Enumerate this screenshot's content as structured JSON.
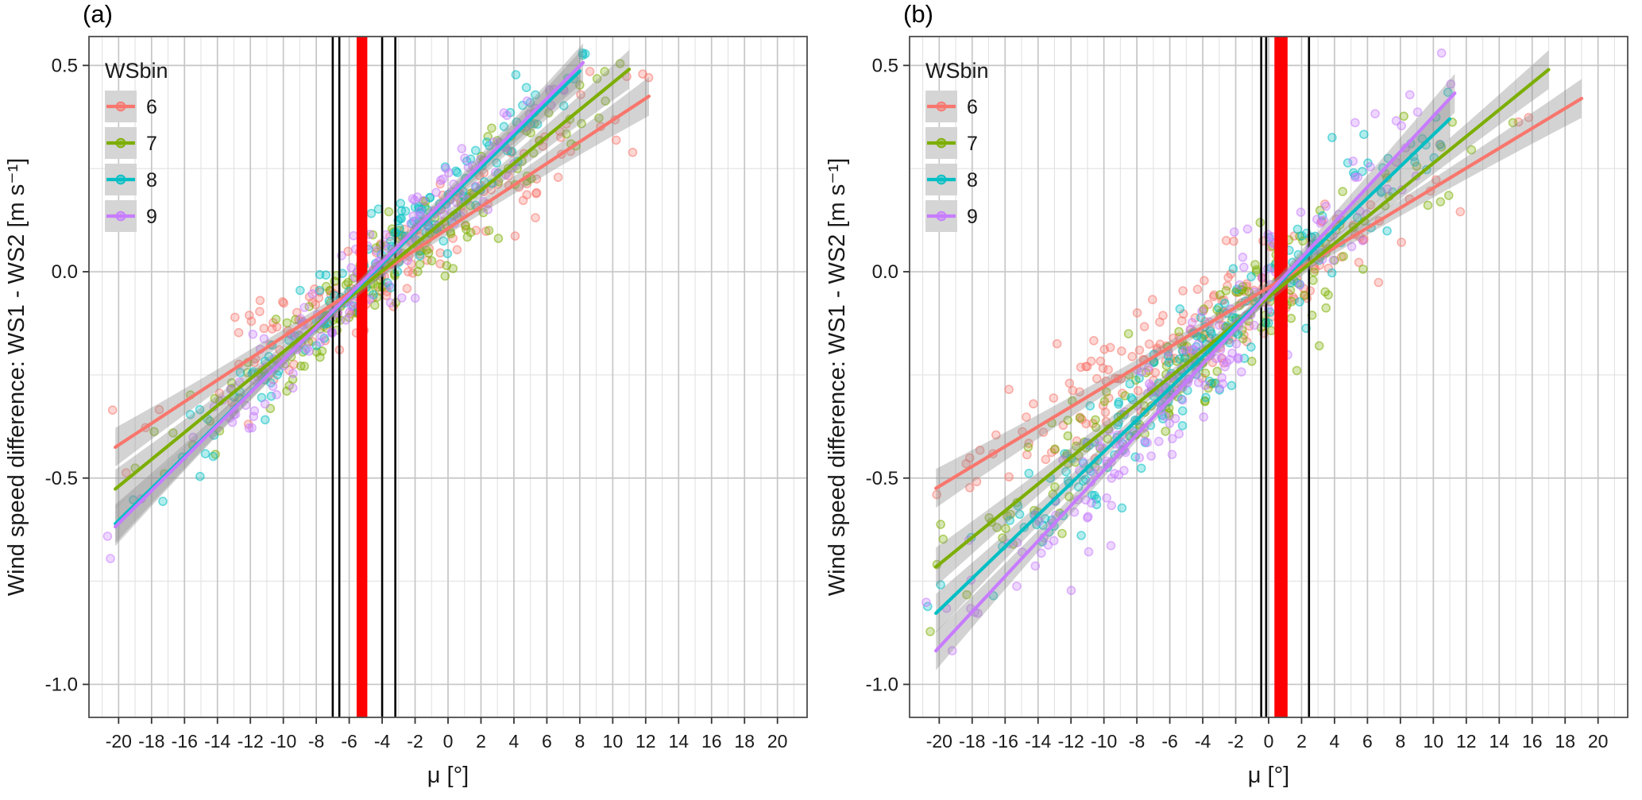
{
  "chart_data": {
    "type": "scatter",
    "title": "",
    "legend_position": "top-left-inside",
    "colors": {
      "band": "#FF0000",
      "vline": "#000000",
      "ribbon": "#8C8C8C",
      "grid_major": "#C6C6C6",
      "grid_minor": "#E2E2E2",
      "panel_border": "#4D4D4D",
      "axis_text": "#1A1A1A",
      "legend_key_bg": "#D5D5D5"
    },
    "panels": [
      {
        "tag": "(a)",
        "xlabel": "μ [°]",
        "ylabel": "Wind speed difference: WS1 - WS2 [m s⁻¹]",
        "xlim": [
          -21.8,
          21.8
        ],
        "ylim": [
          -1.08,
          0.57
        ],
        "x_major_ticks": [
          -20,
          -18,
          -16,
          -14,
          -12,
          -10,
          -8,
          -6,
          -4,
          -2,
          0,
          2,
          4,
          6,
          8,
          10,
          12,
          14,
          16,
          18,
          20
        ],
        "x_minor_ticks": [
          -21,
          -19,
          -17,
          -15,
          -13,
          -11,
          -9,
          -7,
          -5,
          -3,
          -1,
          1,
          3,
          5,
          7,
          9,
          11,
          13,
          15,
          17,
          19,
          21
        ],
        "y_major_ticks": [
          {
            "value": 0.5,
            "label": "0.5"
          },
          {
            "value": 0.0,
            "label": "0.0"
          },
          {
            "value": -0.5,
            "label": "-0.5"
          },
          {
            "value": -1.0,
            "label": "-1.0"
          }
        ],
        "y_minor_ticks": [
          0.25,
          -0.25,
          -0.75
        ],
        "vband": {
          "from": -5.55,
          "to": -4.9
        },
        "vlines": [
          -7.0,
          -6.6,
          -4.0,
          -3.2
        ],
        "legend": {
          "title": "WSbin",
          "entries": [
            "6",
            "7",
            "8",
            "9"
          ]
        },
        "series": [
          {
            "label": "6",
            "color": "#F8766D",
            "slope": 0.02625,
            "intercept": 0.105,
            "line_x": [
              -20.2,
              12.2
            ],
            "seed": 11,
            "points": {
              "n": 160,
              "x_mean": -3.0,
              "x_sd": 6.5,
              "x_min": -20.8,
              "x_max": 12.5,
              "y_sd": 0.055
            }
          },
          {
            "label": "7",
            "color": "#7CAE00",
            "slope": 0.0326,
            "intercept": 0.132,
            "line_x": [
              -20.2,
              11.0
            ],
            "seed": 12,
            "points": {
              "n": 160,
              "x_mean": -3.0,
              "x_sd": 6.5,
              "x_min": -20.8,
              "x_max": 11.5,
              "y_sd": 0.055
            }
          },
          {
            "label": "8",
            "color": "#00BFC4",
            "slope": 0.0389,
            "intercept": 0.175,
            "line_x": [
              -20.2,
              8.0
            ],
            "seed": 13,
            "points": {
              "n": 150,
              "x_mean": -3.5,
              "x_sd": 6.3,
              "x_min": -20.8,
              "x_max": 8.5,
              "y_sd": 0.055
            }
          },
          {
            "label": "9",
            "color": "#C77CFF",
            "slope": 0.0396,
            "intercept": 0.182,
            "line_x": [
              -20.2,
              8.2
            ],
            "seed": 14,
            "points": {
              "n": 150,
              "x_mean": -3.5,
              "x_sd": 6.3,
              "x_min": -20.8,
              "x_max": 8.5,
              "y_sd": 0.055
            }
          }
        ]
      },
      {
        "tag": "(b)",
        "xlabel": "μ [°]",
        "ylabel": "Wind speed difference: WS1 - WS2 [m s⁻¹]",
        "xlim": [
          -21.8,
          21.8
        ],
        "ylim": [
          -1.08,
          0.57
        ],
        "x_major_ticks": [
          -20,
          -18,
          -16,
          -14,
          -12,
          -10,
          -8,
          -6,
          -4,
          -2,
          0,
          2,
          4,
          6,
          8,
          10,
          12,
          14,
          16,
          18,
          20
        ],
        "x_minor_ticks": [
          -21,
          -19,
          -17,
          -15,
          -13,
          -11,
          -9,
          -7,
          -5,
          -3,
          -1,
          1,
          3,
          5,
          7,
          9,
          11,
          13,
          15,
          17,
          19,
          21
        ],
        "y_major_ticks": [
          {
            "value": 0.5,
            "label": "0.5"
          },
          {
            "value": 0.0,
            "label": "0.0"
          },
          {
            "value": -0.5,
            "label": "-0.5"
          },
          {
            "value": -1.0,
            "label": "-1.0"
          }
        ],
        "y_minor_ticks": [
          0.25,
          -0.25,
          -0.75
        ],
        "vband": {
          "from": 0.35,
          "to": 1.15
        },
        "vlines": [
          -0.45,
          -0.15,
          2.45
        ],
        "legend": {
          "title": "WSbin",
          "entries": [
            "6",
            "7",
            "8",
            "9"
          ]
        },
        "series": [
          {
            "label": "6",
            "color": "#F8766D",
            "slope": 0.0241,
            "intercept": -0.038,
            "line_x": [
              -20.2,
              19.0
            ],
            "seed": 21,
            "points": {
              "n": 190,
              "x_mean": -4.0,
              "x_sd": 7.5,
              "x_min": -20.5,
              "x_max": 19.0,
              "y_sd": 0.07
            }
          },
          {
            "label": "7",
            "color": "#7CAE00",
            "slope": 0.0324,
            "intercept": -0.061,
            "line_x": [
              -20.2,
              17.0
            ],
            "seed": 22,
            "points": {
              "n": 190,
              "x_mean": -4.5,
              "x_sd": 7.5,
              "x_min": -20.8,
              "x_max": 17.5,
              "y_sd": 0.07
            }
          },
          {
            "label": "8",
            "color": "#00BFC4",
            "slope": 0.0384,
            "intercept": -0.052,
            "line_x": [
              -20.2,
              11.0
            ],
            "seed": 23,
            "points": {
              "n": 190,
              "x_mean": -5.0,
              "x_sd": 7.0,
              "x_min": -20.8,
              "x_max": 11.5,
              "y_sd": 0.07
            }
          },
          {
            "label": "9",
            "color": "#C77CFF",
            "slope": 0.0429,
            "intercept": -0.052,
            "line_x": [
              -20.2,
              11.3
            ],
            "seed": 24,
            "points": {
              "n": 190,
              "x_mean": -5.0,
              "x_sd": 7.0,
              "x_min": -20.8,
              "x_max": 11.5,
              "y_sd": 0.075
            }
          }
        ]
      }
    ]
  }
}
